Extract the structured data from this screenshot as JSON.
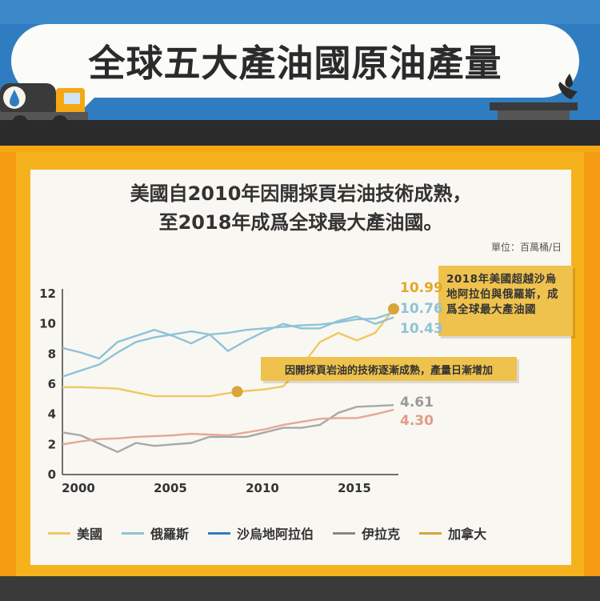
{
  "banner": {
    "title": "全球五大產油國原油產量"
  },
  "chart_data": {
    "type": "line",
    "title_line1": "美國自2010年因開採頁岩油技術成熟，",
    "title_line2": "至2018年成爲全球最大產油國。",
    "unit": "單位：百萬桶/日",
    "xlim": [
      2000,
      2018
    ],
    "ylim": [
      0,
      12
    ],
    "x_ticks": [
      2000,
      2005,
      2010,
      2015
    ],
    "y_ticks": [
      0,
      2,
      4,
      6,
      8,
      10,
      12
    ],
    "x": [
      2000,
      2001,
      2002,
      2003,
      2004,
      2005,
      2006,
      2007,
      2008,
      2009,
      2010,
      2011,
      2012,
      2013,
      2014,
      2015,
      2016,
      2017,
      2018
    ],
    "series": [
      {
        "name": "美國",
        "color": "#f0c862",
        "values": [
          5.8,
          5.8,
          5.75,
          5.7,
          5.45,
          5.2,
          5.2,
          5.2,
          5.2,
          5.4,
          5.55,
          5.65,
          5.85,
          7.2,
          8.8,
          9.4,
          8.9,
          9.4,
          10.99
        ]
      },
      {
        "name": "俄羅斯",
        "color": "#8ec3d8",
        "values": [
          6.5,
          6.9,
          7.3,
          8.1,
          8.8,
          9.1,
          9.3,
          9.5,
          9.3,
          9.4,
          9.6,
          9.7,
          9.8,
          9.9,
          9.95,
          10.1,
          10.3,
          10.35,
          10.76
        ]
      },
      {
        "name": "沙烏地阿拉伯",
        "color": "#8ec3d8",
        "values": [
          8.4,
          8.1,
          7.7,
          8.8,
          9.2,
          9.6,
          9.2,
          8.7,
          9.3,
          8.2,
          8.9,
          9.5,
          10.0,
          9.7,
          9.7,
          10.2,
          10.5,
          10.0,
          10.43
        ]
      },
      {
        "name": "伊拉克",
        "color": "#a8a8a8",
        "values": [
          2.8,
          2.6,
          2.05,
          1.5,
          2.1,
          1.9,
          2.0,
          2.1,
          2.5,
          2.5,
          2.5,
          2.8,
          3.1,
          3.1,
          3.3,
          4.1,
          4.5,
          4.55,
          4.61
        ]
      },
      {
        "name": "加拿大",
        "color": "#e8a696",
        "values": [
          2.0,
          2.2,
          2.35,
          2.4,
          2.5,
          2.55,
          2.6,
          2.7,
          2.65,
          2.6,
          2.8,
          3.0,
          3.3,
          3.5,
          3.7,
          3.75,
          3.75,
          4.0,
          4.3
        ]
      }
    ],
    "end_labels": [
      {
        "text": "10.99",
        "color": "#e3a72a"
      },
      {
        "text": "10.76",
        "color": "#8ec3d8"
      },
      {
        "text": "10.43",
        "color": "#8ec3d8"
      },
      {
        "text": "4.61",
        "color": "#9a9a9a"
      },
      {
        "text": "4.30",
        "color": "#e39a88"
      }
    ],
    "annotations": [
      {
        "text": "2018年美國超越沙烏地阿拉伯與俄羅斯，成爲全球最大產油國",
        "x": 2018,
        "y": 10.99
      },
      {
        "text": "因開採頁岩油的技術逐漸成熟，產量日漸增加",
        "x": 2009.5,
        "y": 5.5
      }
    ],
    "marker_color": "#d9a43a"
  },
  "legend": [
    {
      "name": "美國",
      "color": "#f0c862"
    },
    {
      "name": "俄羅斯",
      "color": "#8ec3d8"
    },
    {
      "name": "沙烏地阿拉伯",
      "color": "#2f7dc0"
    },
    {
      "name": "伊拉克",
      "color": "#888888"
    },
    {
      "name": "加拿大",
      "color": "#d9a43a"
    }
  ]
}
